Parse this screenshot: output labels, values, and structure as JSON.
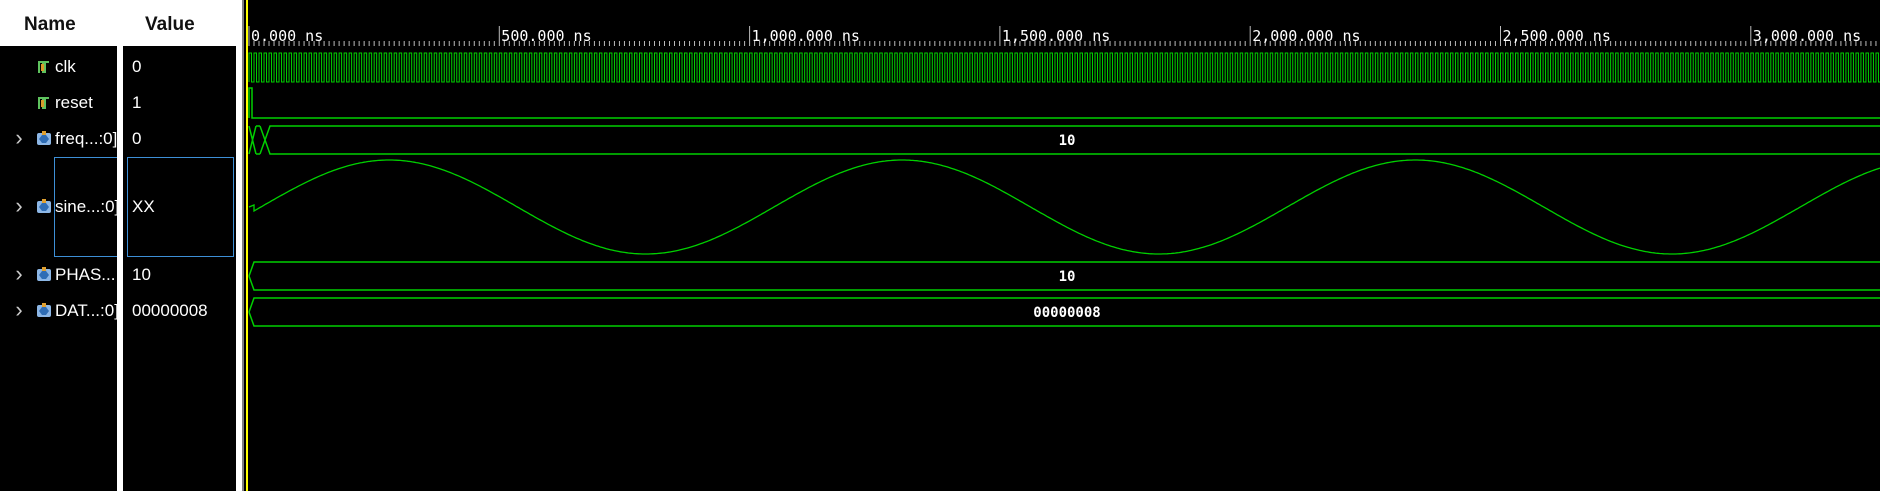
{
  "columns": {
    "name_header": "Name",
    "value_header": "Value"
  },
  "signals": [
    {
      "id": "clk",
      "name": "clk",
      "value": "0",
      "kind": "bit",
      "expandable": false,
      "icon": "wire-icon"
    },
    {
      "id": "reset",
      "name": "reset",
      "value": "1",
      "kind": "bit",
      "expandable": false,
      "icon": "wire-icon"
    },
    {
      "id": "freq",
      "name": "freq...:0]",
      "value": "0",
      "kind": "bus",
      "expandable": true,
      "icon": "bus-icon",
      "wave_label": "10"
    },
    {
      "id": "sine",
      "name": "sine...:0]",
      "value": "XX",
      "kind": "analog",
      "expandable": true,
      "icon": "bus-icon",
      "selected": true
    },
    {
      "id": "phase",
      "name": "PHAS...:",
      "value": "10",
      "kind": "bus",
      "expandable": true,
      "icon": "bus-icon",
      "wave_label": "10"
    },
    {
      "id": "data",
      "name": "DAT...:0]",
      "value": "00000008",
      "kind": "bus",
      "expandable": true,
      "icon": "bus-icon",
      "wave_label": "00000008"
    }
  ],
  "timeline": {
    "unit": "ns",
    "ticks": [
      "0.000 ns",
      "500.000 ns",
      "1,000.000 ns",
      "1,500.000 ns",
      "2,000.000 ns",
      "2,500.000 ns",
      "3,000.000 ns"
    ],
    "tick_values": [
      0,
      500,
      1000,
      1500,
      2000,
      2500,
      3000
    ],
    "visible_range_ns": [
      0,
      3260
    ],
    "cursor_ns": 0,
    "cursor_color": "#ffff00",
    "wave_color": "#00d000"
  },
  "sine_wave": {
    "period_ns": 1025,
    "peak_ns": 280,
    "first_valid_ns": 10
  }
}
